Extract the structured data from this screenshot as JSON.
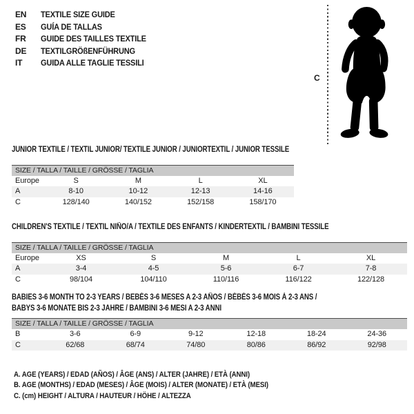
{
  "colors": {
    "header_bar": "#c9c9c9",
    "row_alt": "#f0f0f0",
    "bar_border": "#4a4a4a",
    "text": "#1a1a1a"
  },
  "languages": [
    {
      "code": "EN",
      "label": "TEXTILE SIZE GUIDE"
    },
    {
      "code": "ES",
      "label": "GUÍA DE TALLAS"
    },
    {
      "code": "FR",
      "label": "GUIDE DES TAILLES TEXTILE"
    },
    {
      "code": "DE",
      "label": "TEXTILGRÖßENFÜHRUNG"
    },
    {
      "code": "IT",
      "label": "GUIDA ALLE TAGLIE TESSILI"
    }
  ],
  "figure": {
    "measure_label": "C",
    "silhouette": "toddler-silhouette"
  },
  "tables": [
    {
      "title_lines": [
        "JUNIOR TEXTILE / TEXTIL JUNIOR/ TEXTILE JUNIOR / JUNIORTEXTIL / JUNIOR TESSILE"
      ],
      "header": "SIZE / TALLA / TAILLE / GRÖSSE / TAGLIA",
      "rows": [
        {
          "label": "Europe",
          "cells": [
            "S",
            "M",
            "L",
            "XL"
          ]
        },
        {
          "label": "A",
          "cells": [
            "8-10",
            "10-12",
            "12-13",
            "14-16"
          ]
        },
        {
          "label": "C",
          "cells": [
            "128/140",
            "140/152",
            "152/158",
            "158/170"
          ]
        }
      ]
    },
    {
      "title_lines": [
        "CHILDREN'S TEXTILE / TEXTIL NIÑO/A / TEXTILE DES ENFANTS / KINDERTEXTIL / BAMBINI TESSILE"
      ],
      "header": "SIZE / TALLA / TAILLE / GRÖSSE / TAGLIA",
      "rows": [
        {
          "label": "Europe",
          "cells": [
            "XS",
            "S",
            "M",
            "L",
            "XL"
          ]
        },
        {
          "label": "A",
          "cells": [
            "3-4",
            "4-5",
            "5-6",
            "6-7",
            "7-8"
          ]
        },
        {
          "label": "C",
          "cells": [
            "98/104",
            "104/110",
            "110/116",
            "116/122",
            "122/128"
          ]
        }
      ]
    },
    {
      "title_lines": [
        "BABIES 3-6 MONTH TO 2-3 YEARS / BEBÉS 3-6 MESES A 2-3 AÑOS / BÉBÉS 3-6 MOIS À 2-3 ANS /",
        "BABYS 3-6 MONATE BIS 2-3 JAHRE / BAMBINI 3-6 MESI A 2-3 ANNI"
      ],
      "header": "SIZE / TALLA / TAILLE / GRÖSSE / TAGLIA",
      "rows": [
        {
          "label": "B",
          "cells": [
            "3-6",
            "6-9",
            "9-12",
            "12-18",
            "18-24",
            "24-36"
          ]
        },
        {
          "label": "C",
          "cells": [
            "62/68",
            "68/74",
            "74/80",
            "80/86",
            "86/92",
            "92/98"
          ]
        }
      ]
    }
  ],
  "footnotes": [
    "A. AGE (YEARS) / EDAD (AÑOS) / ÂGE (ANS) / ALTER (JAHRE) / ETÀ (ANNI)",
    "B. AGE (MONTHS) / EDAD (MESES) / ÂGE (MOIS) / ALTER (MONATE) / ETÀ (MESI)",
    "C. (cm) HEIGHT / ALTURA / HAUTEUR / HÖHE / ALTEZZA"
  ]
}
